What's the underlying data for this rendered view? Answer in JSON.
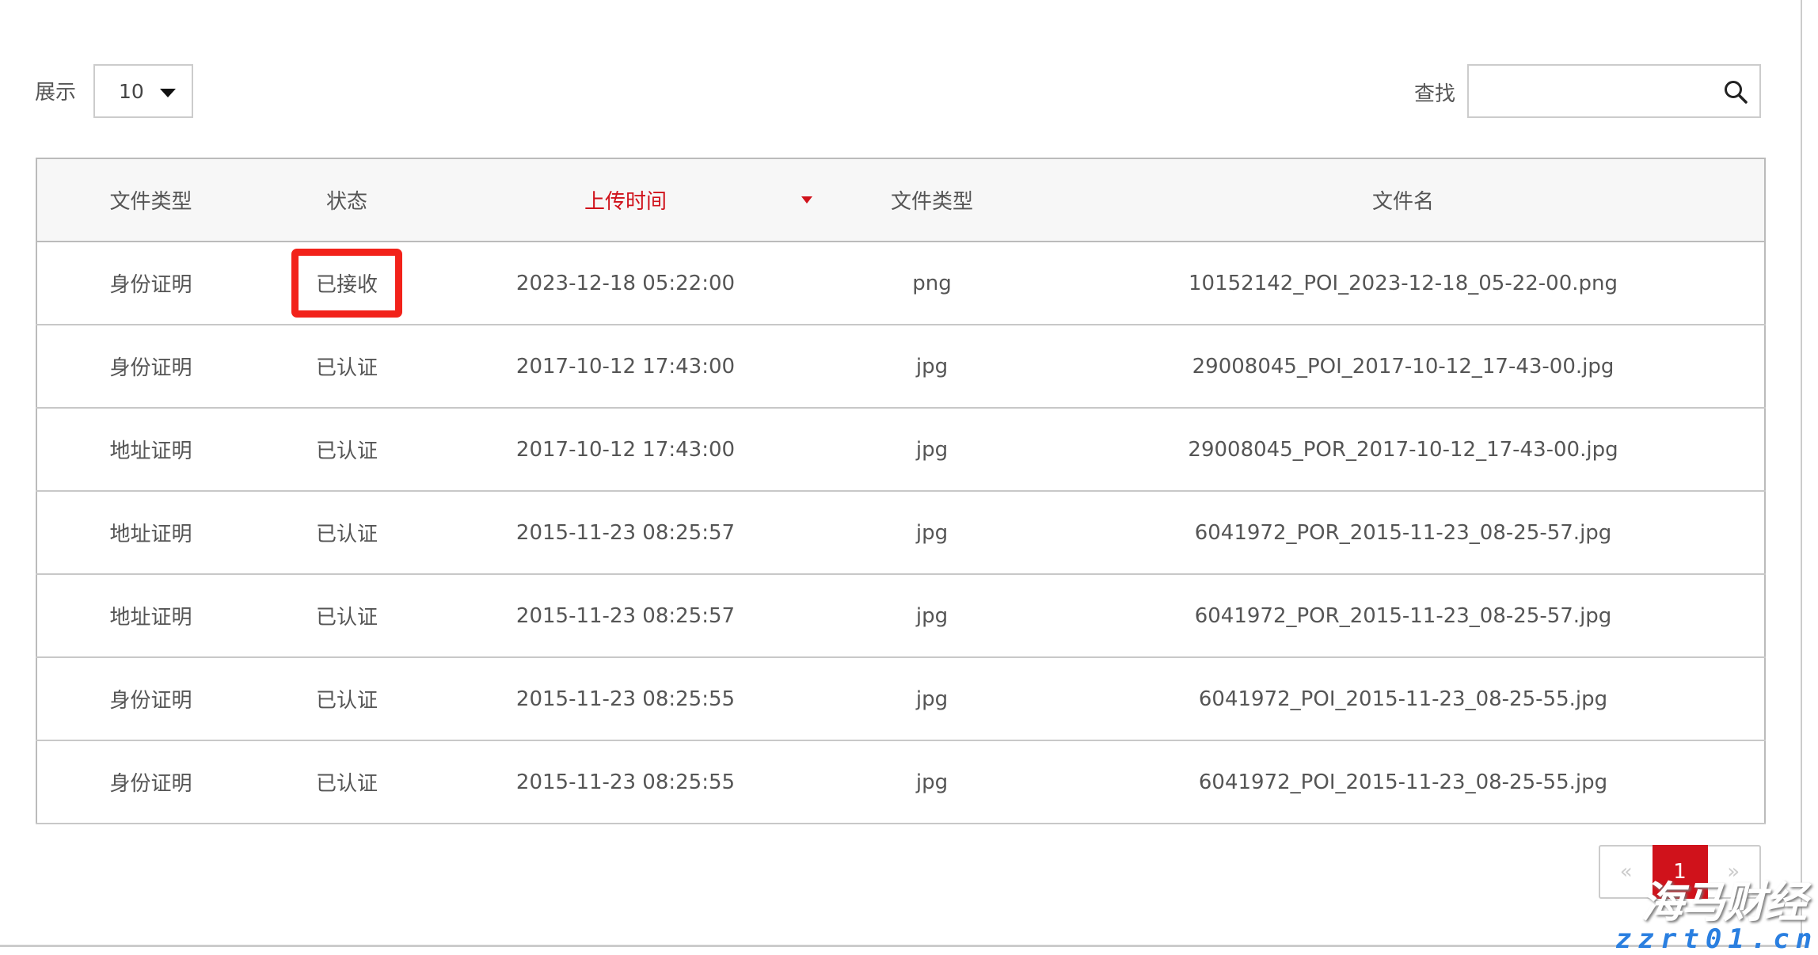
{
  "controls": {
    "show_label": "展示",
    "page_size": "10",
    "search_label": "查找",
    "search_value": "",
    "search_icon": "search-icon"
  },
  "table": {
    "headers": [
      "文件类型",
      "状态",
      "上传时间",
      "文件类型",
      "文件名"
    ],
    "sorted_column": "上传时间",
    "sort_direction": "descending",
    "rows": [
      [
        "身份证明",
        "已接收",
        "2023-12-18 05:22:00",
        "png",
        "10152142_POI_2023-12-18_05-22-00.png"
      ],
      [
        "身份证明",
        "已认证",
        "2017-10-12 17:43:00",
        "jpg",
        "29008045_POI_2017-10-12_17-43-00.jpg"
      ],
      [
        "地址证明",
        "已认证",
        "2017-10-12 17:43:00",
        "jpg",
        "29008045_POR_2017-10-12_17-43-00.jpg"
      ],
      [
        "地址证明",
        "已认证",
        "2015-11-23 08:25:57",
        "jpg",
        "6041972_POR_2015-11-23_08-25-57.jpg"
      ],
      [
        "地址证明",
        "已认证",
        "2015-11-23 08:25:57",
        "jpg",
        "6041972_POR_2015-11-23_08-25-57.jpg"
      ],
      [
        "身份证明",
        "已认证",
        "2015-11-23 08:25:55",
        "jpg",
        "6041972_POI_2015-11-23_08-25-55.jpg"
      ],
      [
        "身份证明",
        "已认证",
        "2015-11-23 08:25:55",
        "jpg",
        "6041972_POI_2015-11-23_08-25-55.jpg"
      ]
    ]
  },
  "pagination": {
    "prev": "«",
    "current": "1",
    "next": "»"
  },
  "watermark": {
    "name": "海马财经",
    "url": "zzrt01.cn"
  },
  "colors": {
    "accent": "#d0121b",
    "highlight": "#f2221a",
    "header_bg": "#f7f7f7"
  }
}
